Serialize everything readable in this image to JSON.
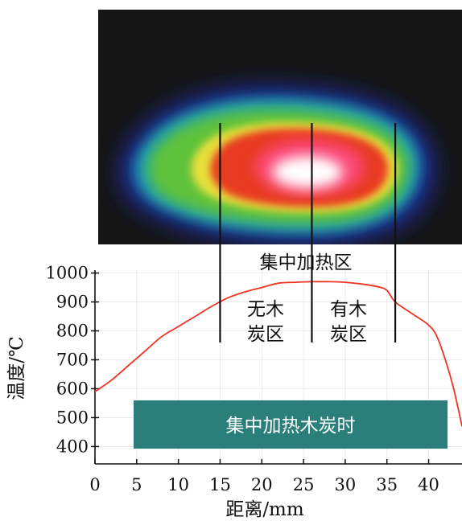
{
  "chart_data": {
    "type": "line",
    "title": "",
    "xlabel": "距离/mm",
    "ylabel": "温度/℃",
    "xlim": [
      0,
      44
    ],
    "ylim": [
      340,
      1010
    ],
    "x_ticks": [
      0,
      5,
      10,
      15,
      20,
      25,
      30,
      35,
      40
    ],
    "y_ticks": [
      400,
      500,
      600,
      700,
      800,
      900,
      1000
    ],
    "series": [
      {
        "color": "#ee3322",
        "x": [
          0,
          2,
          4,
          6,
          8,
          10,
          12,
          14,
          16,
          18,
          20,
          22,
          24,
          26,
          28,
          30,
          32,
          34,
          35,
          36,
          38,
          40,
          41,
          42,
          43,
          44
        ],
        "y": [
          590,
          630,
          680,
          730,
          780,
          815,
          850,
          885,
          915,
          935,
          950,
          965,
          968,
          970,
          970,
          968,
          962,
          952,
          940,
          900,
          860,
          820,
          780,
          700,
          600,
          470
        ]
      }
    ],
    "zone_dividers_x": [
      15,
      26,
      36
    ],
    "annotations": {
      "heating_zone": "集中加热区",
      "zone_no_charcoal_line1": "无木",
      "zone_no_charcoal_line2": "炭区",
      "zone_charcoal_line1": "有木",
      "zone_charcoal_line2": "炭区",
      "banner": "集中加热木炭时"
    },
    "colors": {
      "curve": "#ee3322",
      "banner": "#2b7f7a",
      "thermal_background": "#1a1a1a"
    },
    "grid": true
  }
}
